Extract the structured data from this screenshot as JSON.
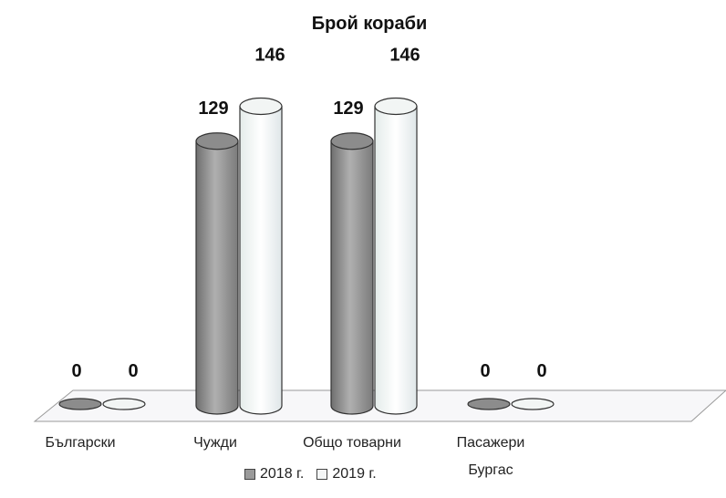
{
  "chart_data": {
    "type": "bar",
    "title": "Брой кораби",
    "categories": [
      "Български",
      "Чужди",
      "Общо товарни",
      "Пасажери Бургас"
    ],
    "series": [
      {
        "name": "2018 г.",
        "values": [
          0,
          129,
          129,
          0
        ],
        "color": "#9a9a9a"
      },
      {
        "name": "2019 г.",
        "values": [
          0,
          146,
          146,
          0
        ],
        "color": "#f4f6f6"
      }
    ],
    "ylim": [
      0,
      160
    ],
    "grid": false,
    "legend_position": "bottom",
    "style": "3d-cylinder"
  }
}
